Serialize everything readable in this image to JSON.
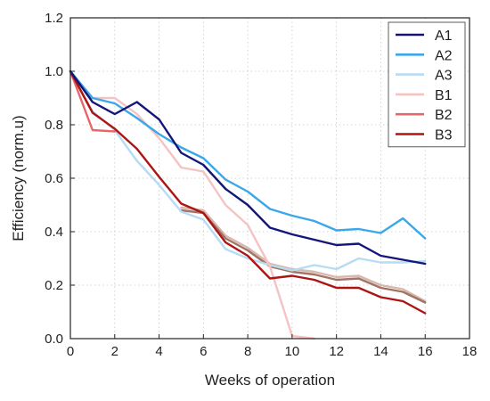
{
  "chart_data": {
    "type": "line",
    "title": "",
    "xlabel": "Weeks of operation",
    "ylabel": "Efficiency (norm.u)",
    "xlim": [
      0,
      18
    ],
    "ylim": [
      0.0,
      1.2
    ],
    "xticks": [
      0,
      2,
      4,
      6,
      8,
      10,
      12,
      14,
      16,
      18
    ],
    "yticks": [
      0.0,
      0.2,
      0.4,
      0.6,
      0.8,
      1.0,
      1.2
    ],
    "xtick_labels": [
      "0",
      "2",
      "4",
      "6",
      "8",
      "10",
      "12",
      "14",
      "16",
      "18"
    ],
    "ytick_labels": [
      "0.0",
      "0.2",
      "0.4",
      "0.6",
      "0.8",
      "1.0",
      "1.2"
    ],
    "grid": true,
    "legend_position": "top-right",
    "series": [
      {
        "name": "A1",
        "color": "#14157a",
        "x": [
          0,
          1,
          2,
          3,
          4,
          5,
          6,
          7,
          8,
          9,
          10,
          11,
          12,
          13,
          14,
          15,
          16
        ],
        "y": [
          1.0,
          0.885,
          0.84,
          0.885,
          0.82,
          0.695,
          0.65,
          0.56,
          0.5,
          0.415,
          0.39,
          0.37,
          0.35,
          0.355,
          0.31,
          0.295,
          0.28
        ]
      },
      {
        "name": "A2",
        "color": "#3aa8e8",
        "x": [
          0,
          1,
          2,
          3,
          4,
          5,
          6,
          7,
          8,
          9,
          10,
          11,
          12,
          13,
          14,
          15,
          16
        ],
        "y": [
          1.0,
          0.9,
          0.88,
          0.825,
          0.765,
          0.715,
          0.675,
          0.595,
          0.55,
          0.485,
          0.46,
          0.44,
          0.405,
          0.41,
          0.395,
          0.45,
          0.375
        ]
      },
      {
        "name": "A3",
        "color": "#b6dcf3",
        "x": [
          0,
          1,
          2,
          3,
          4,
          5,
          6,
          7,
          8,
          9,
          10,
          11,
          12,
          13,
          14,
          15,
          16
        ],
        "y": [
          1.0,
          0.85,
          0.78,
          0.665,
          0.575,
          0.475,
          0.445,
          0.335,
          0.3,
          0.275,
          0.255,
          0.275,
          0.26,
          0.3,
          0.285,
          0.285,
          0.29
        ]
      },
      {
        "name": "B1",
        "color": "#f5c3c3",
        "x": [
          0,
          1,
          2,
          3,
          4,
          5,
          6,
          7,
          8,
          9,
          10,
          11
        ],
        "y": [
          1.0,
          0.9,
          0.9,
          0.84,
          0.75,
          0.64,
          0.625,
          0.5,
          0.425,
          0.27,
          0.01,
          0.0
        ]
      },
      {
        "name": "B2",
        "color": "#e8656a",
        "x": [
          0,
          1,
          2
        ],
        "y": [
          1.0,
          0.78,
          0.775
        ]
      },
      {
        "name": "B3",
        "color": "#ad1513",
        "x": [
          0,
          1,
          2,
          3,
          4,
          5,
          6,
          7,
          8,
          9,
          10,
          11,
          12,
          13,
          14,
          15,
          16
        ],
        "y": [
          1.0,
          0.845,
          0.785,
          0.71,
          0.605,
          0.505,
          0.47,
          0.36,
          0.31,
          0.225,
          0.235,
          0.22,
          0.19,
          0.19,
          0.155,
          0.14,
          0.095
        ]
      },
      {
        "name": "",
        "color": "#d8b7ad",
        "x": [
          5,
          6,
          7,
          8,
          9,
          10,
          11,
          12,
          13,
          14,
          15,
          16
        ],
        "y": [
          0.49,
          0.48,
          0.385,
          0.34,
          0.28,
          0.26,
          0.25,
          0.23,
          0.235,
          0.2,
          0.185,
          0.14
        ]
      },
      {
        "name": "",
        "color": "#a07466",
        "x": [
          5,
          6,
          7,
          8,
          9,
          10,
          11,
          12,
          13,
          14,
          15,
          16
        ],
        "y": [
          0.48,
          0.47,
          0.375,
          0.33,
          0.27,
          0.25,
          0.24,
          0.22,
          0.225,
          0.19,
          0.175,
          0.135
        ]
      }
    ]
  }
}
